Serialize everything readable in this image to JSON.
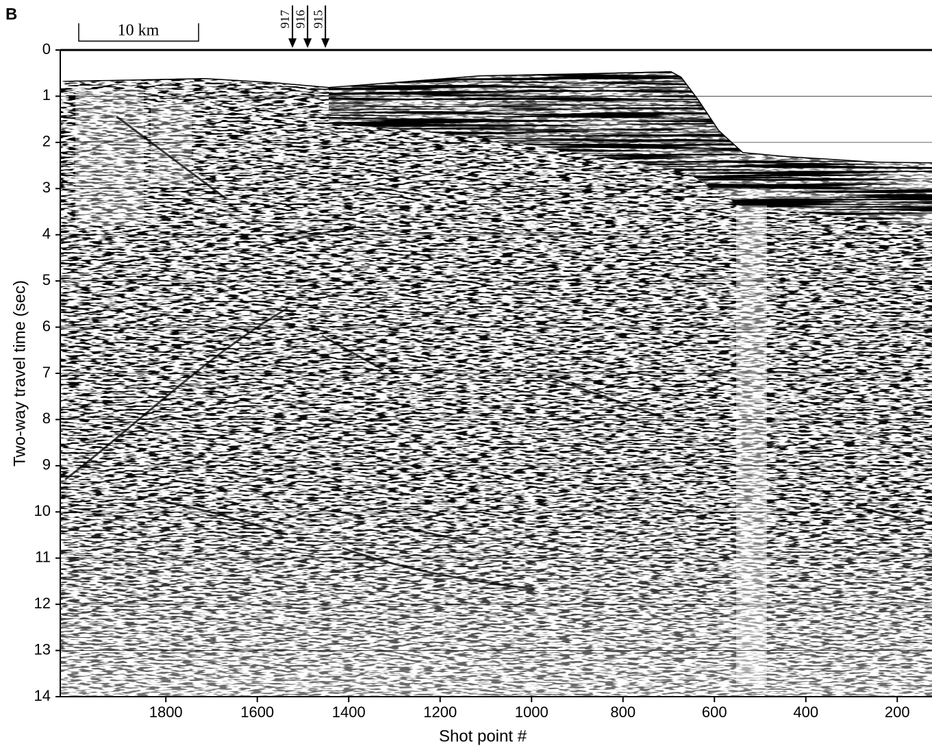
{
  "chart_data": {
    "type": "seismic",
    "panel_label": "B",
    "xlabel": "Shot point #",
    "ylabel": "Two-way travel time (sec)",
    "xlim": [
      2031,
      124
    ],
    "ylim": [
      14,
      0
    ],
    "xticks": [
      1800,
      1600,
      1400,
      1200,
      1000,
      800,
      600,
      400,
      200
    ],
    "yticks": [
      0,
      1,
      2,
      3,
      4,
      5,
      6,
      7,
      8,
      9,
      10,
      11,
      12,
      13,
      14
    ],
    "grid": true,
    "scale_bar": {
      "label": "10 km"
    },
    "sites": [
      {
        "label": "917",
        "x": 1523
      },
      {
        "label": "916",
        "x": 1490
      },
      {
        "label": "915",
        "x": 1451
      }
    ]
  }
}
